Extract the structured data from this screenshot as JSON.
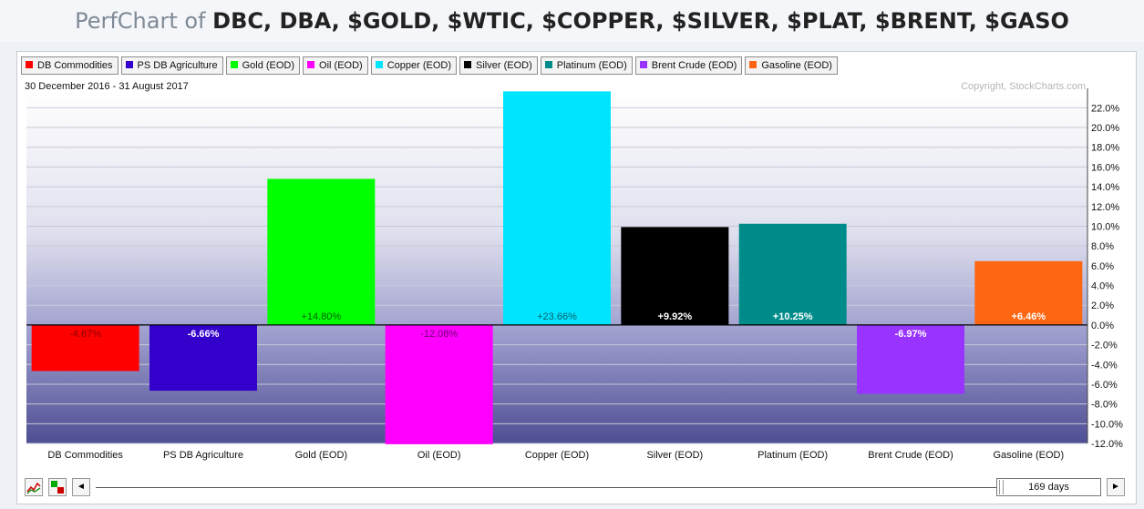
{
  "header": {
    "prefix": "PerfChart of ",
    "symbols": "DBC, DBA, $GOLD, $WTIC, $COPPER, $SILVER, $PLAT, $BRENT, $GASO"
  },
  "legend": [
    {
      "label": "DB Commodities",
      "color": "#ff0000"
    },
    {
      "label": "PS DB Agriculture",
      "color": "#3300cc"
    },
    {
      "label": "Gold (EOD)",
      "color": "#00ff00"
    },
    {
      "label": "Oil (EOD)",
      "color": "#ff00ff"
    },
    {
      "label": "Copper (EOD)",
      "color": "#00e5ff"
    },
    {
      "label": "Silver (EOD)",
      "color": "#000000"
    },
    {
      "label": "Platinum (EOD)",
      "color": "#008b8b"
    },
    {
      "label": "Brent Crude (EOD)",
      "color": "#9933ff"
    },
    {
      "label": "Gasoline (EOD)",
      "color": "#ff6611"
    }
  ],
  "date_range": "30 December 2016 - 31 August 2017",
  "copyright": "Copyright, StockCharts.com",
  "chart_data": {
    "type": "bar",
    "categories": [
      "DB Commodities",
      "PS DB Agriculture",
      "Gold (EOD)",
      "Oil (EOD)",
      "Copper (EOD)",
      "Silver (EOD)",
      "Platinum (EOD)",
      "Brent Crude (EOD)",
      "Gasoline (EOD)"
    ],
    "values": [
      -4.67,
      -6.66,
      14.8,
      -12.08,
      23.66,
      9.92,
      10.25,
      -6.97,
      6.46
    ],
    "value_labels": [
      "-4.67%",
      "-6.66%",
      "+14.80%",
      "-12.08%",
      "+23.66%",
      "+9.92%",
      "+10.25%",
      "-6.97%",
      "+6.46%"
    ],
    "colors": [
      "#ff0000",
      "#3300cc",
      "#00ff00",
      "#ff00ff",
      "#00e5ff",
      "#000000",
      "#008b8b",
      "#9933ff",
      "#ff6611"
    ],
    "label_colors": [
      "#8b0000",
      "#ffffff",
      "#006400",
      "#6b006b",
      "#005f6b",
      "#ffffff",
      "#ffffff",
      "#ffffff",
      "#ffffff"
    ],
    "yticks": [
      "22.0%",
      "20.0%",
      "18.0%",
      "16.0%",
      "14.0%",
      "12.0%",
      "10.0%",
      "8.0%",
      "6.0%",
      "4.0%",
      "2.0%",
      "0.0%",
      "-2.0%",
      "-4.0%",
      "-6.0%",
      "-8.0%",
      "-10.0%",
      "-12.0%"
    ],
    "ytick_values": [
      22,
      20,
      18,
      16,
      14,
      12,
      10,
      8,
      6,
      4,
      2,
      0,
      -2,
      -4,
      -6,
      -8,
      -10,
      -12
    ],
    "ylim": [
      -12.0,
      23.6
    ],
    "grid": true,
    "title": "",
    "xlabel": "",
    "ylabel": ""
  },
  "controls": {
    "days_label": "169 days",
    "left_arrow": "◄",
    "right_arrow": "►"
  }
}
